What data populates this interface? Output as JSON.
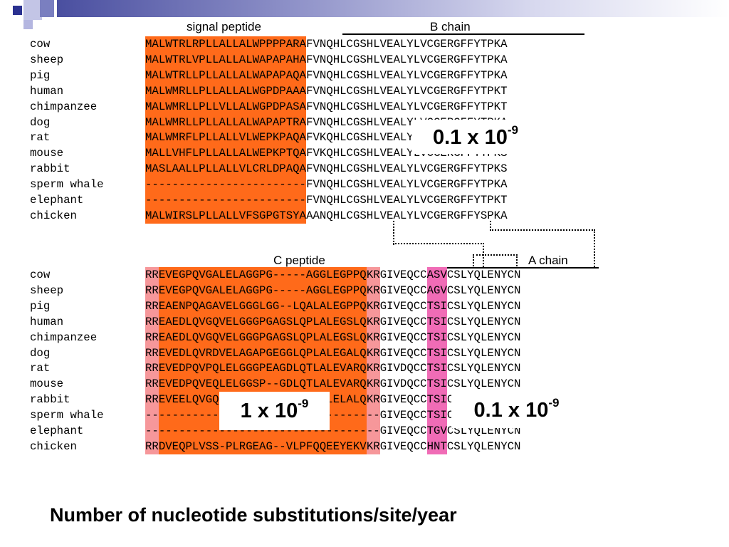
{
  "slide": {
    "footer": "Number of nucleotide substitutions/site/year"
  },
  "upper": {
    "signal_label": "signal peptide",
    "b_label": "B chain",
    "rows": [
      {
        "species": "cow",
        "signal": "MALWTRLRPLLALLALWPPPPARA",
        "b": "FVNQHLCGSHLVEALYLVCGERGFFYTPKA"
      },
      {
        "species": "sheep",
        "signal": "MALWTRLVPLLALLALWAPAPAHA",
        "b": "FVNQHLCGSHLVEALYLVCGERGFFYTPKA"
      },
      {
        "species": "pig",
        "signal": "MALWTRLLPLLALLALWAPAPAQA",
        "b": "FVNQHLCGSHLVEALYLVCGERGFFYTPKA"
      },
      {
        "species": "human",
        "signal": "MALWMRLLPLLALLALWGPDPAAA",
        "b": "FVNQHLCGSHLVEALYLVCGERGFFYTPKT"
      },
      {
        "species": "chimpanzee",
        "signal": "MALWMRLLPLLVLLALWGPDPASA",
        "b": "FVNQHLCGSHLVEALYLVCGERGFFYTPKT"
      },
      {
        "species": "dog",
        "signal": "MALWMRLLPLLALLALWAPAPTRA",
        "b": "FVNQHLCGSHLVEALYLVCGERGFFYTPKA"
      },
      {
        "species": "rat",
        "signal": "MALWMRFLPLLALLVLWEPKPAQA",
        "b": "FVKQHLCGSHLVEALYLVCGERGFFYTPKS"
      },
      {
        "species": "mouse",
        "signal": "MALLVHFLPLLALLALWEPKPTQA",
        "b": "FVKQHLCGSHLVEALYLVCGERGFFYTPKS"
      },
      {
        "species": "rabbit",
        "signal": "MASLAALLPLLALLVLCRLDPAQA",
        "b": "FVNQHLCGSHLVEALYLVCGERGFFYTPKS"
      },
      {
        "species": "sperm whale",
        "signal": "------------------------",
        "b": "FVNQHLCGSHLVEALYLVCGERGFFYTPKA"
      },
      {
        "species": "elephant",
        "signal": "------------------------",
        "b": "FVNQHLCGSHLVEALYLVCGERGFFYTPKT"
      },
      {
        "species": "chicken",
        "signal": "MALWIRSLPLLALLVFSGPGTSYA",
        "b": "AANQHLCGSHLVEALYLVCGERGFFYSPKA"
      }
    ]
  },
  "lower": {
    "c_label": "C peptide",
    "a_label": "A chain",
    "rows": [
      {
        "species": "cow",
        "cl": "RR",
        "c": "EVEGPQVGALELAGGPG-----AGGLEGPPQ",
        "cr": "KR",
        "a1": "GIVEQCC",
        "ap": "ASV",
        "a2": "CSLYQLENYCN"
      },
      {
        "species": "sheep",
        "cl": "RR",
        "c": "EVEGPQVGALELAGGPG-----AGGLEGPPQ",
        "cr": "KR",
        "a1": "GIVEQCC",
        "ap": "AGV",
        "a2": "CSLYQLENYCN"
      },
      {
        "species": "pig",
        "cl": "RR",
        "c": "EAENPQAGAVELGGGLGG--LQALALEGPPQ",
        "cr": "KR",
        "a1": "GIVEQCC",
        "ap": "TSI",
        "a2": "CSLYQLENYCN"
      },
      {
        "species": "human",
        "cl": "RR",
        "c": "EAEDLQVGQVELGGGPGAGSLQPLALEGSLQ",
        "cr": "KR",
        "a1": "GIVEQCC",
        "ap": "TSI",
        "a2": "CSLYQLENYCN"
      },
      {
        "species": "chimpanzee",
        "cl": "RR",
        "c": "EAEDLQVGQVELGGGPGAGSLQPLALEGSLQ",
        "cr": "KR",
        "a1": "GIVEQCC",
        "ap": "TSI",
        "a2": "CSLYQLENYCN"
      },
      {
        "species": "dog",
        "cl": "RR",
        "c": "EVEDLQVRDVELAGAPGEGGLQPLALEGALQ",
        "cr": "KR",
        "a1": "GIVEQCC",
        "ap": "TSI",
        "a2": "CSLYQLENYCN"
      },
      {
        "species": "rat",
        "cl": "RR",
        "c": "EVEDPQVPQLELGGGPEAGDLQTLALEVARQ",
        "cr": "KR",
        "a1": "GIVDQCC",
        "ap": "TSI",
        "a2": "CSLYQLENYCN"
      },
      {
        "species": "mouse",
        "cl": "RR",
        "c": "EVEDPQVEQLELGGSP--GDLQTLALEVARQ",
        "cr": "KR",
        "a1": "GIVDQCC",
        "ap": "TSI",
        "a2": "CSLYQLENYCN"
      },
      {
        "species": "rabbit",
        "cl": "RR",
        "c": "EVEELQVGQAELGGGPGAGGLQPSALELALQ",
        "cr": "KR",
        "a1": "GIVEQCC",
        "ap": "TSI",
        "a2": "CSLYQLENYCN"
      },
      {
        "species": "sperm whale",
        "cl": "--",
        "c": "-------------------------------",
        "cr": "--",
        "a1": "GIVEQCC",
        "ap": "TSI",
        "a2": "CSLYQLENYCN"
      },
      {
        "species": "elephant",
        "cl": "--",
        "c": "-------------------------------",
        "cr": "--",
        "a1": "GIVEQCC",
        "ap": "TGV",
        "a2": "CSLYQLENYCN"
      },
      {
        "species": "chicken",
        "cl": "RR",
        "c": "DVEQPLVSS-PLRGEAG--VLPFQQEEYEKV",
        "cr": "KR",
        "a1": "GIVEQCC",
        "ap": "HNT",
        "a2": "CSLYQLENYCN"
      }
    ]
  },
  "rates": {
    "b_rate": {
      "base": "0.1 x 10",
      "exp": "-9"
    },
    "c_rate": {
      "base": "1 x 10",
      "exp": "-9"
    },
    "a_rate": {
      "base": "0.1 x 10",
      "exp": "-9"
    }
  }
}
